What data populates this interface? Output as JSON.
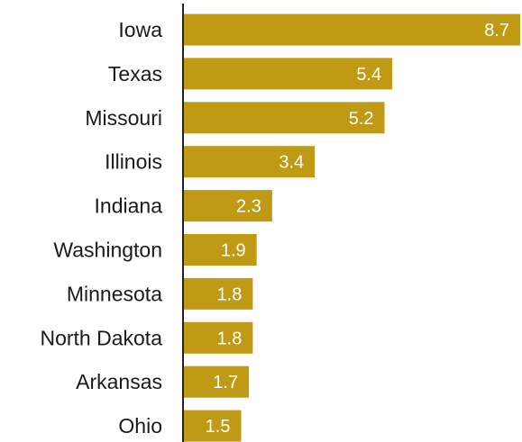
{
  "chart_data": {
    "type": "bar",
    "orientation": "horizontal",
    "categories": [
      "Iowa",
      "Texas",
      "Missouri",
      "Illinois",
      "Indiana",
      "Washington",
      "Minnesota",
      "North Dakota",
      "Arkansas",
      "Ohio"
    ],
    "values": [
      8.7,
      5.4,
      5.2,
      3.4,
      2.3,
      1.9,
      1.8,
      1.8,
      1.7,
      1.5
    ],
    "value_labels": [
      "8.7",
      "5.4",
      "5.2",
      "3.4",
      "2.3",
      "1.9",
      "1.8",
      "1.8",
      "1.7",
      "1.5"
    ],
    "title": "",
    "xlabel": "",
    "ylabel": "",
    "xlim": [
      0,
      8.7
    ],
    "grid": false,
    "bar_color": "#c09a14",
    "axis_color": "#222222"
  }
}
